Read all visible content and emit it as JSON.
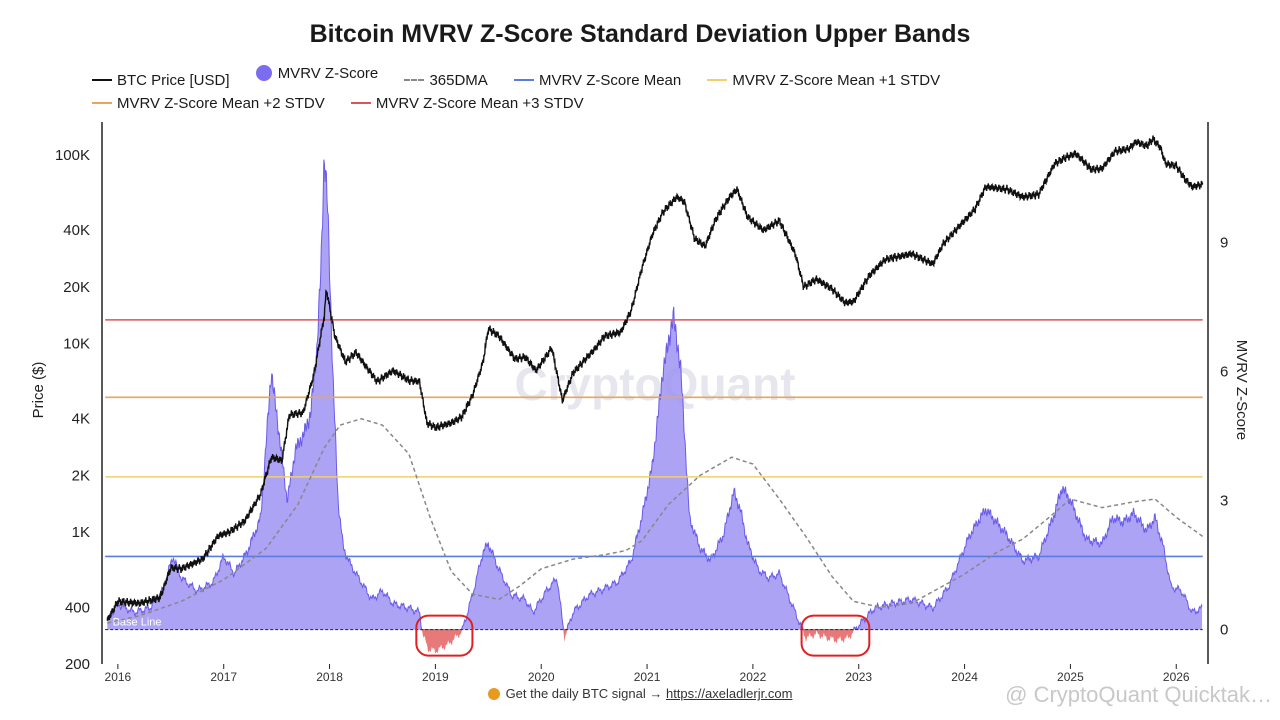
{
  "chart_data": {
    "type": "area",
    "title": "Bitcoin MVRV Z-Score Standard Deviation Upper Bands",
    "ylabel_left": "Price ($)",
    "ylabel_right": "MVRV Z-Score",
    "y_left_scale": "log",
    "y_left_range": [
      200,
      150000
    ],
    "y_left_ticks": [
      {
        "value": 200,
        "label": "200"
      },
      {
        "value": 400,
        "label": "400"
      },
      {
        "value": 1000,
        "label": "1K"
      },
      {
        "value": 2000,
        "label": "2K"
      },
      {
        "value": 4000,
        "label": "4K"
      },
      {
        "value": 10000,
        "label": "10K"
      },
      {
        "value": 20000,
        "label": "20K"
      },
      {
        "value": 40000,
        "label": "40K"
      },
      {
        "value": 100000,
        "label": "100K"
      }
    ],
    "y_right_range": [
      -0.8,
      11.8
    ],
    "y_right_ticks": [
      {
        "value": 0,
        "label": "0"
      },
      {
        "value": 3,
        "label": "3"
      },
      {
        "value": 6,
        "label": "6"
      },
      {
        "value": 9,
        "label": "9"
      }
    ],
    "x_range": [
      2015.85,
      2026.3
    ],
    "x_ticks": [
      "2016",
      "2017",
      "2018",
      "2019",
      "2020",
      "2021",
      "2022",
      "2023",
      "2024",
      "2025",
      "2026"
    ],
    "legend": [
      {
        "name": "BTC Price [USD]",
        "color": "#111111",
        "style": "line"
      },
      {
        "name": "MVRV Z-Score",
        "color": "#7b6cf0",
        "style": "dot"
      },
      {
        "name": "365DMA",
        "color": "#888888",
        "style": "dash"
      },
      {
        "name": "MVRV Z-Score Mean",
        "color": "#5b7be0",
        "style": "line"
      },
      {
        "name": "MVRV Z-Score Mean +1 STDV",
        "color": "#f0cf6e",
        "style": "line"
      },
      {
        "name": "MVRV Z-Score Mean +2 STDV",
        "color": "#e8a55e",
        "style": "line"
      },
      {
        "name": "MVRV Z-Score Mean +3 STDV",
        "color": "#d9555a",
        "style": "line"
      }
    ],
    "bands": {
      "mean": 1.7,
      "plus1": 3.55,
      "plus2": 5.4,
      "plus3": 7.2
    },
    "baseline_label": "Base Line",
    "series": [
      {
        "name": "BTC Price [USD]",
        "points": [
          [
            2015.9,
            340
          ],
          [
            2016.0,
            430
          ],
          [
            2016.2,
            420
          ],
          [
            2016.4,
            450
          ],
          [
            2016.5,
            650
          ],
          [
            2016.6,
            640
          ],
          [
            2016.8,
            720
          ],
          [
            2016.95,
            960
          ],
          [
            2017.05,
            1000
          ],
          [
            2017.2,
            1150
          ],
          [
            2017.35,
            1600
          ],
          [
            2017.45,
            2500
          ],
          [
            2017.55,
            2400
          ],
          [
            2017.62,
            4200
          ],
          [
            2017.75,
            4300
          ],
          [
            2017.85,
            6800
          ],
          [
            2017.95,
            14000
          ],
          [
            2017.97,
            19500
          ],
          [
            2018.05,
            11000
          ],
          [
            2018.15,
            8000
          ],
          [
            2018.25,
            9000
          ],
          [
            2018.35,
            7500
          ],
          [
            2018.45,
            6300
          ],
          [
            2018.6,
            7200
          ],
          [
            2018.75,
            6400
          ],
          [
            2018.85,
            6300
          ],
          [
            2018.92,
            3800
          ],
          [
            2019.0,
            3600
          ],
          [
            2019.15,
            3800
          ],
          [
            2019.25,
            4100
          ],
          [
            2019.35,
            5300
          ],
          [
            2019.45,
            8000
          ],
          [
            2019.5,
            12000
          ],
          [
            2019.6,
            11000
          ],
          [
            2019.75,
            8300
          ],
          [
            2019.85,
            8500
          ],
          [
            2019.95,
            7200
          ],
          [
            2020.1,
            9500
          ],
          [
            2020.2,
            5000
          ],
          [
            2020.3,
            7000
          ],
          [
            2020.5,
            9300
          ],
          [
            2020.6,
            11000
          ],
          [
            2020.75,
            11500
          ],
          [
            2020.85,
            15000
          ],
          [
            2020.95,
            25000
          ],
          [
            2021.05,
            38000
          ],
          [
            2021.15,
            50000
          ],
          [
            2021.28,
            60000
          ],
          [
            2021.35,
            57000
          ],
          [
            2021.45,
            36000
          ],
          [
            2021.55,
            33000
          ],
          [
            2021.65,
            46000
          ],
          [
            2021.78,
            60000
          ],
          [
            2021.85,
            66000
          ],
          [
            2021.95,
            47000
          ],
          [
            2022.1,
            40000
          ],
          [
            2022.25,
            45000
          ],
          [
            2022.4,
            30000
          ],
          [
            2022.48,
            20000
          ],
          [
            2022.6,
            22000
          ],
          [
            2022.75,
            19500
          ],
          [
            2022.87,
            16500
          ],
          [
            2022.95,
            16700
          ],
          [
            2023.1,
            23000
          ],
          [
            2023.25,
            28000
          ],
          [
            2023.5,
            30000
          ],
          [
            2023.7,
            26500
          ],
          [
            2023.8,
            34000
          ],
          [
            2023.95,
            42000
          ],
          [
            2024.1,
            52000
          ],
          [
            2024.2,
            68000
          ],
          [
            2024.4,
            66000
          ],
          [
            2024.55,
            60000
          ],
          [
            2024.7,
            62000
          ],
          [
            2024.85,
            90000
          ],
          [
            2024.95,
            97000
          ],
          [
            2025.05,
            102000
          ],
          [
            2025.2,
            84000
          ],
          [
            2025.3,
            85000
          ],
          [
            2025.42,
            105000
          ],
          [
            2025.55,
            108000
          ],
          [
            2025.62,
            118000
          ],
          [
            2025.72,
            112000
          ],
          [
            2025.78,
            122000
          ],
          [
            2025.85,
            110000
          ],
          [
            2025.9,
            90000
          ],
          [
            2026.0,
            88000
          ],
          [
            2026.08,
            75000
          ],
          [
            2026.15,
            68000
          ],
          [
            2026.25,
            70000
          ]
        ]
      },
      {
        "name": "MVRV Z-Score",
        "points": [
          [
            2015.9,
            0.2
          ],
          [
            2016.0,
            0.6
          ],
          [
            2016.15,
            0.4
          ],
          [
            2016.3,
            0.5
          ],
          [
            2016.42,
            0.9
          ],
          [
            2016.52,
            1.7
          ],
          [
            2016.6,
            1.2
          ],
          [
            2016.75,
            0.9
          ],
          [
            2016.9,
            1.1
          ],
          [
            2017.0,
            1.7
          ],
          [
            2017.1,
            1.3
          ],
          [
            2017.22,
            1.8
          ],
          [
            2017.35,
            2.6
          ],
          [
            2017.42,
            5.0
          ],
          [
            2017.45,
            6.0
          ],
          [
            2017.5,
            5.0
          ],
          [
            2017.55,
            4.0
          ],
          [
            2017.6,
            3.0
          ],
          [
            2017.68,
            4.2
          ],
          [
            2017.75,
            4.5
          ],
          [
            2017.82,
            5.0
          ],
          [
            2017.88,
            6.5
          ],
          [
            2017.92,
            8.5
          ],
          [
            2017.95,
            11.0
          ],
          [
            2017.98,
            10.0
          ],
          [
            2018.03,
            6.0
          ],
          [
            2018.08,
            3.0
          ],
          [
            2018.13,
            1.9
          ],
          [
            2018.2,
            1.5
          ],
          [
            2018.3,
            1.1
          ],
          [
            2018.4,
            0.7
          ],
          [
            2018.5,
            0.9
          ],
          [
            2018.6,
            0.6
          ],
          [
            2018.75,
            0.5
          ],
          [
            2018.85,
            0.4
          ],
          [
            2018.88,
            -0.1
          ],
          [
            2018.93,
            -0.45
          ],
          [
            2019.0,
            -0.5
          ],
          [
            2019.12,
            -0.35
          ],
          [
            2019.25,
            -0.05
          ],
          [
            2019.35,
            0.8
          ],
          [
            2019.45,
            1.8
          ],
          [
            2019.5,
            2.0
          ],
          [
            2019.6,
            1.4
          ],
          [
            2019.72,
            0.8
          ],
          [
            2019.85,
            0.7
          ],
          [
            2019.92,
            0.4
          ],
          [
            2020.05,
            0.9
          ],
          [
            2020.15,
            1.2
          ],
          [
            2020.22,
            -0.2
          ],
          [
            2020.3,
            0.4
          ],
          [
            2020.45,
            0.8
          ],
          [
            2020.55,
            0.9
          ],
          [
            2020.72,
            1.1
          ],
          [
            2020.85,
            1.6
          ],
          [
            2020.95,
            2.6
          ],
          [
            2021.05,
            3.8
          ],
          [
            2021.15,
            6.0
          ],
          [
            2021.25,
            7.3
          ],
          [
            2021.32,
            6.0
          ],
          [
            2021.4,
            2.6
          ],
          [
            2021.5,
            1.9
          ],
          [
            2021.6,
            1.6
          ],
          [
            2021.72,
            2.2
          ],
          [
            2021.82,
            3.2
          ],
          [
            2021.88,
            2.8
          ],
          [
            2021.95,
            2.0
          ],
          [
            2022.05,
            1.4
          ],
          [
            2022.15,
            1.2
          ],
          [
            2022.25,
            1.3
          ],
          [
            2022.35,
            0.7
          ],
          [
            2022.45,
            0.1
          ],
          [
            2022.5,
            -0.2
          ],
          [
            2022.6,
            -0.1
          ],
          [
            2022.7,
            -0.2
          ],
          [
            2022.8,
            -0.25
          ],
          [
            2022.9,
            -0.2
          ],
          [
            2023.0,
            0.1
          ],
          [
            2023.15,
            0.5
          ],
          [
            2023.3,
            0.6
          ],
          [
            2023.5,
            0.7
          ],
          [
            2023.7,
            0.5
          ],
          [
            2023.85,
            1.0
          ],
          [
            2023.95,
            1.6
          ],
          [
            2024.05,
            2.2
          ],
          [
            2024.2,
            2.8
          ],
          [
            2024.4,
            2.2
          ],
          [
            2024.55,
            1.6
          ],
          [
            2024.7,
            1.7
          ],
          [
            2024.85,
            2.7
          ],
          [
            2024.92,
            3.3
          ],
          [
            2025.0,
            3.0
          ],
          [
            2025.15,
            2.1
          ],
          [
            2025.3,
            2.0
          ],
          [
            2025.4,
            2.6
          ],
          [
            2025.5,
            2.5
          ],
          [
            2025.6,
            2.7
          ],
          [
            2025.72,
            2.3
          ],
          [
            2025.8,
            2.6
          ],
          [
            2025.88,
            1.9
          ],
          [
            2025.95,
            1.0
          ],
          [
            2026.05,
            0.9
          ],
          [
            2026.15,
            0.4
          ],
          [
            2026.25,
            0.5
          ]
        ]
      },
      {
        "name": "365DMA",
        "points": [
          [
            2015.9,
            330
          ],
          [
            2016.2,
            360
          ],
          [
            2016.6,
            430
          ],
          [
            2017.0,
            560
          ],
          [
            2017.4,
            820
          ],
          [
            2017.7,
            1400
          ],
          [
            2017.95,
            2800
          ],
          [
            2018.1,
            3700
          ],
          [
            2018.3,
            4000
          ],
          [
            2018.5,
            3700
          ],
          [
            2018.75,
            2600
          ],
          [
            2018.95,
            1200
          ],
          [
            2019.15,
            620
          ],
          [
            2019.35,
            470
          ],
          [
            2019.6,
            440
          ],
          [
            2019.8,
            520
          ],
          [
            2020.0,
            640
          ],
          [
            2020.3,
            720
          ],
          [
            2020.6,
            760
          ],
          [
            2020.8,
            800
          ],
          [
            2020.95,
            900
          ],
          [
            2021.2,
            1400
          ],
          [
            2021.5,
            2000
          ],
          [
            2021.8,
            2500
          ],
          [
            2022.0,
            2300
          ],
          [
            2022.25,
            1500
          ],
          [
            2022.5,
            950
          ],
          [
            2022.75,
            580
          ],
          [
            2022.95,
            430
          ],
          [
            2023.2,
            400
          ],
          [
            2023.5,
            420
          ],
          [
            2023.8,
            520
          ],
          [
            2024.0,
            600
          ],
          [
            2024.3,
            780
          ],
          [
            2024.55,
            920
          ],
          [
            2024.8,
            1200
          ],
          [
            2025.0,
            1500
          ],
          [
            2025.3,
            1350
          ],
          [
            2025.6,
            1450
          ],
          [
            2025.8,
            1500
          ],
          [
            2026.0,
            1200
          ],
          [
            2026.25,
            950
          ]
        ]
      }
    ],
    "annotations": [
      {
        "type": "ellipse",
        "x": [
          2018.82,
          2019.35
        ]
      },
      {
        "type": "ellipse",
        "x": [
          2022.46,
          2023.1
        ]
      }
    ],
    "watermark": "CryptoQuant"
  },
  "footer": {
    "text": "Get the daily BTC signal → ",
    "link": "https://axeladlerjr.com"
  },
  "watermark_right": "@ CryptoQuant Quicktak…"
}
